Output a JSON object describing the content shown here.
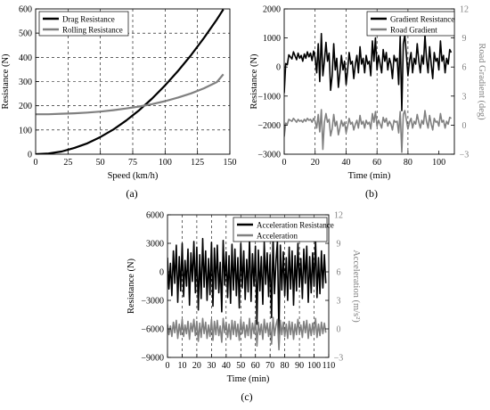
{
  "figure": {
    "panel_labels": [
      "(a)",
      "(b)",
      "(c)"
    ]
  },
  "chart_data": [
    {
      "type": "line",
      "panel": "(a)",
      "xlabel": "Speed (km/h)",
      "ylabel": "Resistance (N)",
      "xlim": [
        0,
        150
      ],
      "ylim": [
        0,
        600
      ],
      "xticks": [
        0,
        25,
        50,
        75,
        100,
        125,
        150
      ],
      "yticks": [
        0,
        100,
        200,
        300,
        400,
        500,
        600
      ],
      "grid": "dashed vertical and horizontal lines",
      "legend": "top-left",
      "series": [
        {
          "name": "Drag Resistance",
          "color": "#000000",
          "x": [
            0,
            10,
            20,
            30,
            40,
            50,
            60,
            70,
            80,
            90,
            100,
            110,
            120,
            130,
            140,
            145
          ],
          "y": [
            0,
            3,
            11,
            26,
            45,
            71,
            102,
            139,
            182,
            230,
            284,
            344,
            409,
            480,
            557,
            598
          ]
        },
        {
          "name": "Rolling Resistance",
          "color": "#808080",
          "x": [
            0,
            10,
            20,
            30,
            40,
            50,
            60,
            70,
            80,
            90,
            100,
            110,
            120,
            130,
            140,
            145
          ],
          "y": [
            165,
            165,
            167,
            169,
            172,
            176,
            182,
            189,
            197,
            207,
            219,
            234,
            251,
            272,
            298,
            330
          ]
        }
      ]
    },
    {
      "type": "line",
      "panel": "(b)",
      "xlabel": "Time (min)",
      "ylabel": "Resistance (N)",
      "y2label": "Road Gradient (deg)",
      "xlim": [
        0,
        110
      ],
      "ylim": [
        -3000,
        2000
      ],
      "y2lim": [
        -3,
        12
      ],
      "xticks": [
        0,
        20,
        40,
        60,
        80,
        100
      ],
      "yticks": [
        -3000,
        -2000,
        -1000,
        0,
        1000,
        2000
      ],
      "y2ticks": [
        -3,
        0,
        3,
        6,
        9,
        12
      ],
      "grid": "dashed vertical lines",
      "legend": "top-right",
      "series": [
        {
          "name": "Gradient Resistance",
          "color": "#000000",
          "axis": "left",
          "x": [
            0,
            1,
            2,
            3,
            4,
            5,
            6,
            7,
            8,
            9,
            10,
            11,
            12,
            13,
            14,
            15,
            16,
            17,
            18,
            19,
            20,
            21,
            22,
            23,
            24,
            25,
            26,
            27,
            28,
            29,
            30,
            31,
            32,
            33,
            34,
            35,
            36,
            37,
            38,
            39,
            40,
            41,
            42,
            43,
            44,
            45,
            46,
            47,
            48,
            49,
            50,
            51,
            52,
            53,
            54,
            55,
            56,
            57,
            58,
            59,
            60,
            61,
            62,
            63,
            64,
            65,
            66,
            67,
            68,
            69,
            70,
            71,
            72,
            73,
            74,
            75,
            76,
            77,
            78,
            79,
            80,
            81,
            82,
            83,
            84,
            85,
            86,
            87,
            88,
            89,
            90,
            91,
            92,
            93,
            94,
            95,
            96,
            97,
            98,
            99,
            100,
            101,
            102,
            103,
            104,
            105,
            106,
            107,
            108
          ],
          "y": [
            -900,
            120,
            80,
            420,
            350,
            280,
            520,
            380,
            250,
            480,
            300,
            400,
            200,
            450,
            300,
            520,
            350,
            480,
            220,
            550,
            320,
            -200,
            800,
            -500,
            1150,
            -300,
            200,
            850,
            200,
            480,
            -800,
            -300,
            800,
            -100,
            300,
            -700,
            -200,
            400,
            -100,
            200,
            -600,
            -100,
            500,
            100,
            200,
            -400,
            100,
            400,
            -200,
            700,
            100,
            300,
            -200,
            400,
            100,
            200,
            -300,
            900,
            200,
            1000,
            -100,
            400,
            100,
            -200,
            600,
            200,
            500,
            -100,
            300,
            100,
            -400,
            400,
            200,
            300,
            -600,
            1050,
            -1500,
            800,
            1100,
            400,
            -300,
            200,
            500,
            -200,
            300,
            100,
            800,
            200,
            -200,
            400,
            100,
            1100,
            300,
            -200,
            700,
            100,
            -400,
            500,
            200,
            300,
            -100,
            900,
            200,
            400,
            -200,
            300,
            100,
            600,
            500
          ]
        },
        {
          "name": "Road Gradient",
          "color": "#808080",
          "axis": "right",
          "x": [
            0,
            1,
            2,
            3,
            4,
            5,
            6,
            7,
            8,
            9,
            10,
            11,
            12,
            13,
            14,
            15,
            16,
            17,
            18,
            19,
            20,
            21,
            22,
            23,
            24,
            25,
            26,
            27,
            28,
            29,
            30,
            31,
            32,
            33,
            34,
            35,
            36,
            37,
            38,
            39,
            40,
            41,
            42,
            43,
            44,
            45,
            46,
            47,
            48,
            49,
            50,
            51,
            52,
            53,
            54,
            55,
            56,
            57,
            58,
            59,
            60,
            61,
            62,
            63,
            64,
            65,
            66,
            67,
            68,
            69,
            70,
            71,
            72,
            73,
            74,
            75,
            76,
            77,
            78,
            79,
            80,
            81,
            82,
            83,
            84,
            85,
            86,
            87,
            88,
            89,
            90,
            91,
            92,
            93,
            94,
            95,
            96,
            97,
            98,
            99,
            100,
            101,
            102,
            103,
            104,
            105,
            106,
            107,
            108
          ],
          "y": [
            -1.2,
            0.2,
            0.1,
            0.6,
            0.5,
            0.4,
            0.7,
            0.5,
            0.3,
            0.6,
            0.4,
            0.5,
            0.3,
            0.6,
            0.4,
            0.7,
            0.5,
            0.6,
            0.3,
            0.7,
            0.4,
            -0.3,
            1.1,
            -0.7,
            1.6,
            -2.5,
            0.3,
            1.2,
            0.3,
            0.6,
            -1.1,
            -0.4,
            1.1,
            -0.1,
            0.4,
            -1.0,
            -0.3,
            0.5,
            -0.1,
            0.3,
            -0.8,
            -0.1,
            0.7,
            0.1,
            0.3,
            -0.5,
            0.1,
            0.5,
            -0.3,
            1.0,
            0.1,
            0.4,
            -0.3,
            0.5,
            0.1,
            0.3,
            -0.4,
            1.2,
            0.3,
            1.4,
            -0.1,
            0.5,
            0.1,
            -0.3,
            0.8,
            0.3,
            0.7,
            -0.1,
            0.4,
            0.1,
            -0.5,
            0.5,
            0.3,
            0.4,
            -0.8,
            1.4,
            -2.8,
            1.1,
            1.5,
            0.5,
            -0.4,
            0.3,
            0.7,
            -0.3,
            0.4,
            0.1,
            1.1,
            0.3,
            -0.3,
            0.5,
            0.1,
            1.5,
            0.4,
            -0.3,
            1.0,
            0.1,
            -0.5,
            0.7,
            0.3,
            0.4,
            -0.1,
            1.2,
            0.3,
            0.5,
            -0.3,
            0.4,
            0.1,
            0.8,
            0.7
          ]
        }
      ]
    },
    {
      "type": "line",
      "panel": "(c)",
      "xlabel": "Time (min)",
      "ylabel": "Resistance (N)",
      "y2label": "Acceleration (m/s²)",
      "xlim": [
        0,
        110
      ],
      "ylim": [
        -9000,
        6000
      ],
      "y2lim": [
        -3,
        12
      ],
      "xticks": [
        0,
        10,
        20,
        30,
        40,
        50,
        60,
        70,
        80,
        90,
        100,
        110
      ],
      "yticks": [
        -9000,
        -6000,
        -3000,
        0,
        3000,
        6000
      ],
      "y2ticks": [
        -3,
        0,
        3,
        6,
        9,
        12
      ],
      "grid": "dashed vertical lines",
      "legend": "top-right",
      "series": [
        {
          "name": "Acceleration Resistance",
          "color": "#000000",
          "axis": "left",
          "x": [
            0,
            1,
            2,
            3,
            4,
            5,
            6,
            7,
            8,
            9,
            10,
            11,
            12,
            13,
            14,
            15,
            16,
            17,
            18,
            19,
            20,
            21,
            22,
            23,
            24,
            25,
            26,
            27,
            28,
            29,
            30,
            31,
            32,
            33,
            34,
            35,
            36,
            37,
            38,
            39,
            40,
            41,
            42,
            43,
            44,
            45,
            46,
            47,
            48,
            49,
            50,
            51,
            52,
            53,
            54,
            55,
            56,
            57,
            58,
            59,
            60,
            61,
            62,
            63,
            64,
            65,
            66,
            67,
            68,
            69,
            70,
            71,
            72,
            73,
            74,
            75,
            76,
            77,
            78,
            79,
            80,
            81,
            82,
            83,
            84,
            85,
            86,
            87,
            88,
            89,
            90,
            91,
            92,
            93,
            94,
            95,
            96,
            97,
            98,
            99,
            100,
            101,
            102,
            103,
            104,
            105,
            106,
            107,
            108
          ],
          "y": [
            1500,
            -1800,
            900,
            -2500,
            2200,
            -1200,
            2800,
            -3200,
            1600,
            -2000,
            3000,
            -2600,
            1200,
            -1500,
            2400,
            -3500,
            2000,
            -1000,
            3200,
            -2200,
            2600,
            -4000,
            1800,
            -2800,
            3500,
            -1600,
            2200,
            -3000,
            1400,
            -2400,
            3100,
            -3600,
            2500,
            -1800,
            2800,
            -2200,
            1000,
            -4200,
            3300,
            -1400,
            2100,
            -2700,
            1700,
            -3300,
            2900,
            -1900,
            2400,
            -2500,
            1500,
            -3800,
            3000,
            -1700,
            2200,
            -2900,
            1300,
            -2100,
            3400,
            -3100,
            1900,
            -1500,
            2700,
            -5500,
            2300,
            -2000,
            1600,
            -3400,
            3100,
            -1300,
            2000,
            -2600,
            1800,
            -4800,
            3600,
            -2300,
            1200,
            3200,
            -6800,
            2800,
            -1900,
            2100,
            -2500,
            1500,
            -3000,
            2600,
            -1800,
            2200,
            -3500,
            1700,
            -2000,
            3000,
            -1600,
            1400,
            -2800,
            2400,
            -1200,
            2700,
            -3200,
            1600,
            -2200,
            2000,
            -1500,
            3300,
            -2700,
            1500,
            -2300,
            2200,
            -1700,
            1800,
            -1200
          ]
        },
        {
          "name": "Acceleration",
          "color": "#808080",
          "axis": "right",
          "x": [
            0,
            1,
            2,
            3,
            4,
            5,
            6,
            7,
            8,
            9,
            10,
            11,
            12,
            13,
            14,
            15,
            16,
            17,
            18,
            19,
            20,
            21,
            22,
            23,
            24,
            25,
            26,
            27,
            28,
            29,
            30,
            31,
            32,
            33,
            34,
            35,
            36,
            37,
            38,
            39,
            40,
            41,
            42,
            43,
            44,
            45,
            46,
            47,
            48,
            49,
            50,
            51,
            52,
            53,
            54,
            55,
            56,
            57,
            58,
            59,
            60,
            61,
            62,
            63,
            64,
            65,
            66,
            67,
            68,
            69,
            70,
            71,
            72,
            73,
            74,
            75,
            76,
            77,
            78,
            79,
            80,
            81,
            82,
            83,
            84,
            85,
            86,
            87,
            88,
            89,
            90,
            91,
            92,
            93,
            94,
            95,
            96,
            97,
            98,
            99,
            100,
            101,
            102,
            103,
            104,
            105,
            106,
            107,
            108
          ],
          "y": [
            0.5,
            -0.6,
            0.3,
            -0.8,
            0.7,
            -0.4,
            0.9,
            -1.0,
            0.5,
            -0.6,
            1.0,
            -0.8,
            0.4,
            -0.5,
            0.8,
            -1.1,
            0.6,
            -0.3,
            1.0,
            -0.7,
            0.8,
            -1.3,
            0.6,
            -0.9,
            1.1,
            -0.5,
            0.7,
            -1.0,
            0.4,
            -0.8,
            1.0,
            -1.2,
            0.8,
            -0.6,
            0.9,
            -0.7,
            0.3,
            -1.4,
            1.1,
            -0.4,
            0.7,
            -0.9,
            0.5,
            -1.1,
            0.9,
            -0.6,
            0.8,
            -0.8,
            0.5,
            -1.2,
            1.0,
            -0.5,
            0.7,
            -0.9,
            0.4,
            -0.7,
            1.1,
            -1.0,
            0.6,
            -0.5,
            0.9,
            -1.8,
            0.7,
            -0.6,
            0.5,
            -1.1,
            1.0,
            -0.4,
            0.6,
            -0.8,
            0.6,
            -1.6,
            1.2,
            -0.7,
            0.4,
            1.0,
            -2.2,
            0.9,
            -0.6,
            0.7,
            -0.8,
            0.5,
            -1.0,
            0.8,
            -0.6,
            0.7,
            -1.1,
            0.5,
            -0.6,
            1.0,
            -0.5,
            0.4,
            -0.9,
            0.8,
            -0.4,
            0.9,
            -1.0,
            0.5,
            -0.7,
            0.6,
            -0.5,
            1.1,
            -0.9,
            0.5,
            -0.7,
            0.7,
            -0.5,
            0.6,
            -0.4
          ]
        }
      ]
    }
  ]
}
